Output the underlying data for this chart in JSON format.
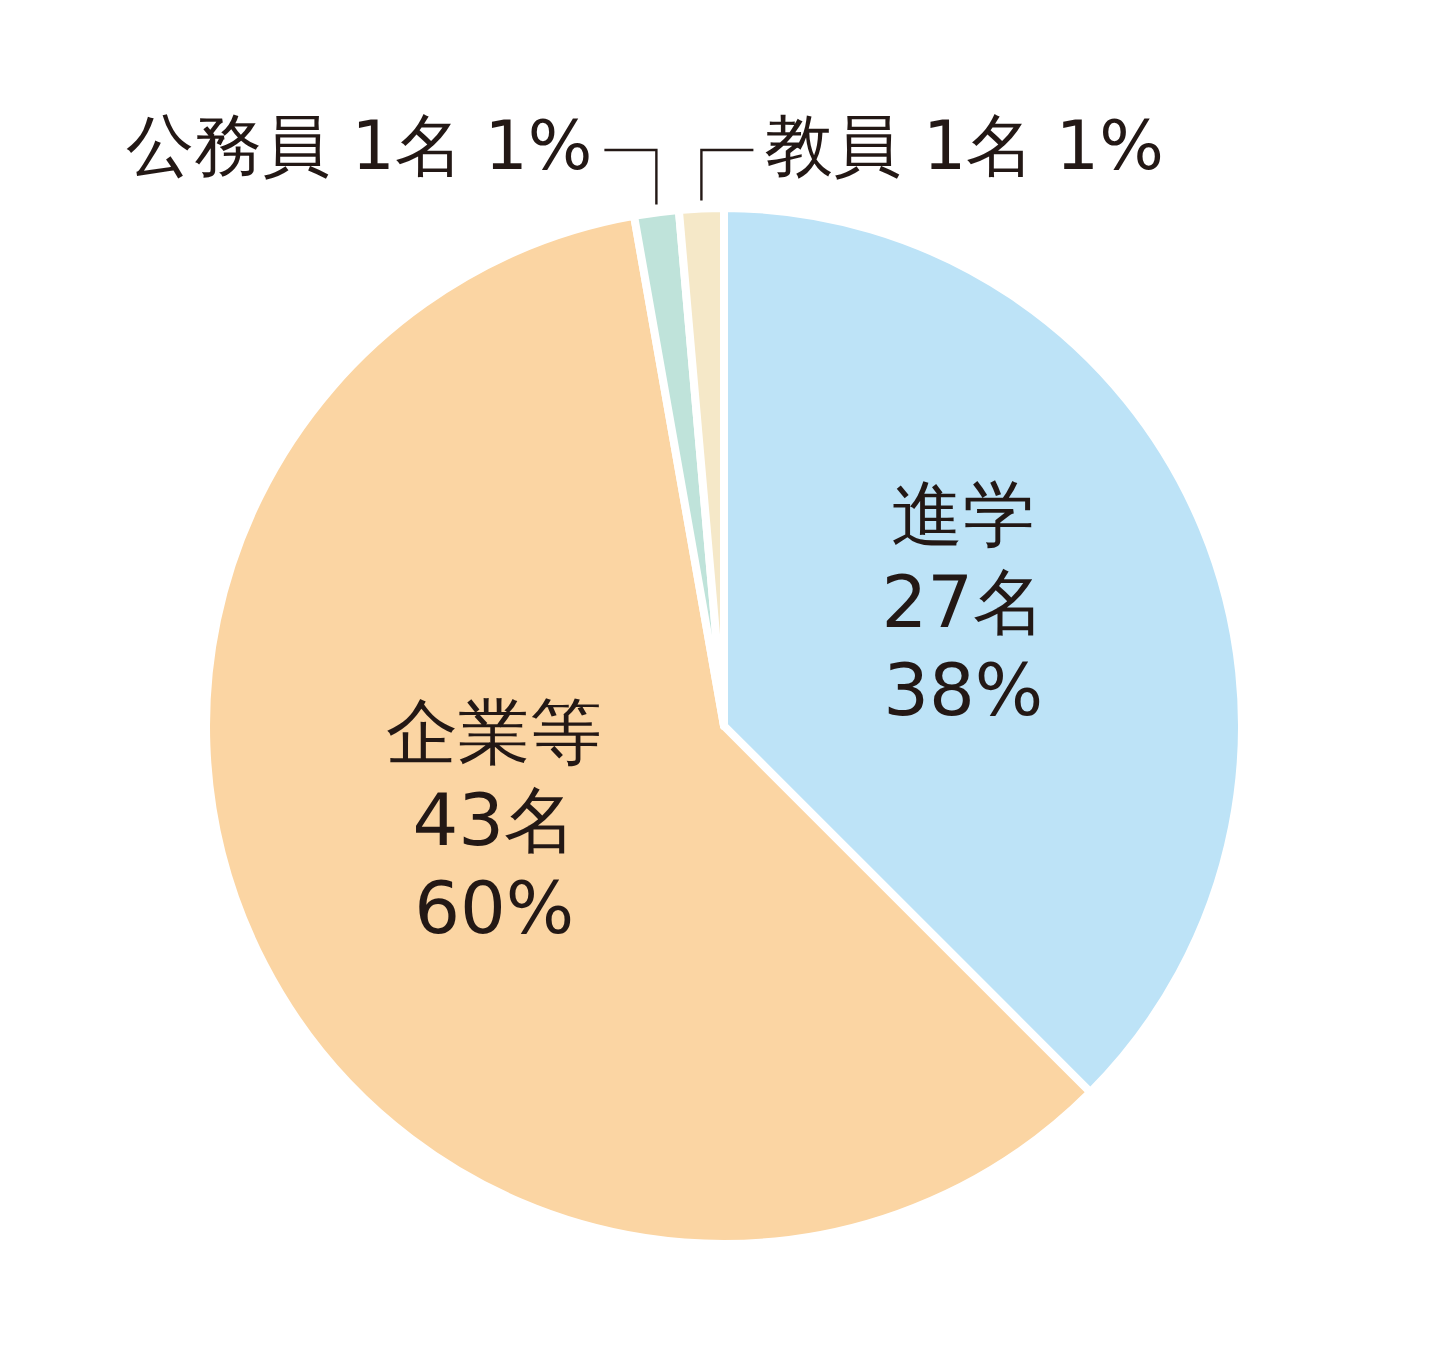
{
  "chart_data": {
    "type": "pie",
    "categories": [
      "進学",
      "企業等",
      "公務員",
      "教員"
    ],
    "values": [
      27,
      43,
      1,
      1
    ],
    "value_labels": [
      "27名 38%",
      "43名 60%",
      "1名 1%",
      "1名 1%"
    ],
    "colors": [
      "#bde3f7",
      "#fbd5a3",
      "#bfe3da",
      "#f5e8c8"
    ]
  }
}
